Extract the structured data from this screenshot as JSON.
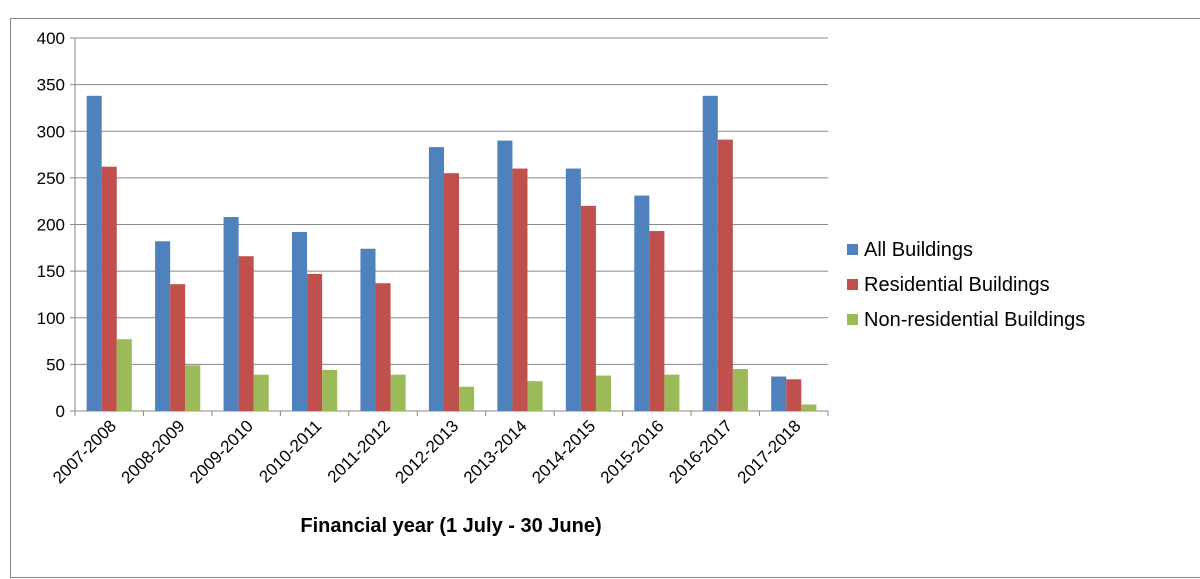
{
  "chart_data": {
    "type": "bar",
    "x_label": "Financial year (1 July - 30 June)",
    "categories": [
      "2007-2008",
      "2008-2009",
      "2009-2010",
      "2010-2011",
      "2011-2012",
      "2012-2013",
      "2013-2014",
      "2014-2015",
      "2015-2016",
      "2016-2017",
      "2017-2018"
    ],
    "series": [
      {
        "name": "All Buildings",
        "color": "#4f81bd",
        "values": [
          338,
          182,
          208,
          192,
          174,
          283,
          290,
          260,
          231,
          338,
          37
        ]
      },
      {
        "name": "Residential Buildings",
        "color": "#c0504d",
        "values": [
          262,
          136,
          166,
          147,
          137,
          255,
          260,
          220,
          193,
          291,
          34
        ]
      },
      {
        "name": "Non-residential Buildings",
        "color": "#9bbb59",
        "values": [
          77,
          49,
          39,
          44,
          39,
          26,
          32,
          38,
          39,
          45,
          7
        ]
      }
    ],
    "ylim": [
      0,
      400
    ],
    "yticks": [
      0,
      50,
      100,
      150,
      200,
      250,
      300,
      350,
      400
    ],
    "grid": true,
    "legend": "right"
  }
}
